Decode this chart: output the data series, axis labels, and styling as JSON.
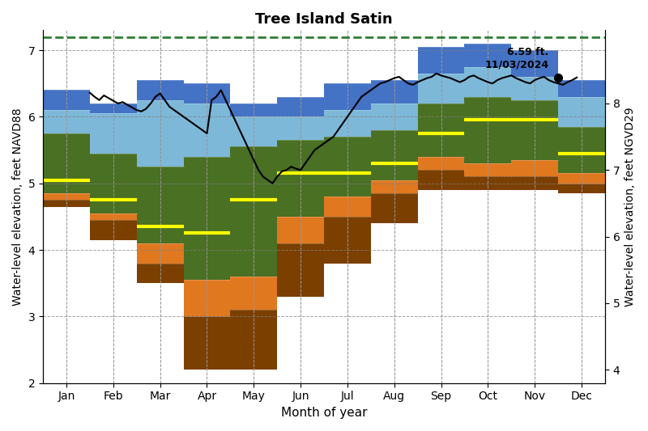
{
  "title": "Tree Island Satin",
  "xlabel": "Month of year",
  "ylabel_left": "Water-level elevation, feet NAVD88",
  "ylabel_right": "Water-level elevation, feet NGVD29",
  "months": [
    "Jan",
    "Feb",
    "Mar",
    "Apr",
    "May",
    "Jun",
    "Jul",
    "Aug",
    "Sep",
    "Oct",
    "Nov",
    "Dec"
  ],
  "ylim_left": [
    2,
    7.3
  ],
  "ylim_right": [
    3.8,
    9.1
  ],
  "green_dashed_line": 7.2,
  "percentile_data": {
    "p0": [
      4.65,
      4.15,
      3.5,
      2.2,
      2.2,
      3.3,
      3.8,
      4.4,
      4.9,
      4.9,
      4.9,
      4.85
    ],
    "p10": [
      4.75,
      4.45,
      3.8,
      3.0,
      3.1,
      4.1,
      4.5,
      4.85,
      5.2,
      5.1,
      5.1,
      5.0
    ],
    "p25": [
      4.85,
      4.55,
      4.1,
      3.55,
      3.6,
      4.5,
      4.8,
      5.05,
      5.4,
      5.3,
      5.35,
      5.15
    ],
    "p50": [
      5.05,
      4.75,
      4.35,
      4.25,
      4.75,
      5.15,
      5.15,
      5.3,
      5.75,
      5.95,
      5.95,
      5.45
    ],
    "p75": [
      5.75,
      5.45,
      5.25,
      5.4,
      5.55,
      5.65,
      5.7,
      5.8,
      6.2,
      6.3,
      6.25,
      5.85
    ],
    "p90": [
      6.1,
      6.05,
      6.25,
      6.2,
      6.0,
      6.0,
      6.1,
      6.2,
      6.65,
      6.75,
      6.6,
      6.3
    ],
    "p100": [
      6.4,
      6.2,
      6.55,
      6.5,
      6.2,
      6.3,
      6.5,
      6.55,
      7.05,
      7.1,
      7.0,
      6.55
    ]
  },
  "band_colors": {
    "p0_p10": "#7B3F00",
    "p10_p25": "#E07820",
    "p25_p75_bottom": "#4A7023",
    "p75_p90": "#7DB8D8",
    "p90_p100": "#4472C4"
  },
  "median_color": "#FFFF00",
  "median_linewidth": 3,
  "current_value": 6.59,
  "current_date": "11/03/2024",
  "current_month_idx": 10,
  "annotation_text": "6.59 ft.\n11/03/2024",
  "daily_line": {
    "months_x": [
      0.5,
      0.6,
      0.7,
      0.8,
      0.9,
      1.0,
      1.1,
      1.2,
      1.3,
      1.4,
      1.5,
      1.6,
      1.7,
      1.8,
      1.9,
      2.0,
      2.1,
      2.2,
      2.3,
      2.4,
      2.5,
      2.6,
      2.7,
      2.8,
      2.9,
      3.0,
      3.1,
      3.2,
      3.3,
      3.4,
      3.5,
      3.6,
      3.7,
      3.8,
      3.9,
      4.0,
      4.1,
      4.2,
      4.3,
      4.4,
      4.5,
      4.6,
      4.7,
      4.8,
      4.9,
      5.0,
      5.1,
      5.2,
      5.3,
      5.4,
      5.5,
      5.6,
      5.7,
      5.8,
      5.9,
      6.0,
      6.1,
      6.2,
      6.3,
      6.4,
      6.5,
      6.6,
      6.7,
      6.8,
      6.9,
      7.0,
      7.1,
      7.2,
      7.3,
      7.4,
      7.5,
      7.6,
      7.7,
      7.8,
      7.9,
      8.0,
      8.1,
      8.2,
      8.3,
      8.4,
      8.5,
      8.6,
      8.7,
      8.8,
      8.9,
      9.0,
      9.1,
      9.2,
      9.3,
      9.4,
      9.5,
      9.6,
      9.7,
      9.8,
      9.9,
      10.0,
      10.1,
      10.2,
      10.3,
      10.4,
      10.5,
      10.6,
      10.7,
      10.8,
      10.9
    ],
    "values": [
      6.36,
      6.3,
      6.25,
      6.32,
      6.28,
      6.24,
      6.2,
      6.22,
      6.18,
      6.14,
      6.1,
      6.08,
      6.12,
      6.2,
      6.3,
      6.35,
      6.25,
      6.15,
      6.1,
      6.05,
      6.0,
      5.95,
      5.9,
      5.85,
      5.8,
      5.75,
      6.25,
      6.3,
      6.4,
      6.25,
      6.1,
      5.95,
      5.8,
      5.65,
      5.5,
      5.35,
      5.2,
      5.1,
      5.05,
      5.0,
      5.1,
      5.18,
      5.2,
      5.25,
      5.22,
      5.2,
      5.3,
      5.4,
      5.5,
      5.55,
      5.6,
      5.65,
      5.7,
      5.8,
      5.9,
      6.0,
      6.1,
      6.2,
      6.3,
      6.35,
      6.4,
      6.45,
      6.5,
      6.52,
      6.55,
      6.58,
      6.6,
      6.55,
      6.5,
      6.48,
      6.52,
      6.55,
      6.58,
      6.6,
      6.65,
      6.62,
      6.6,
      6.58,
      6.55,
      6.52,
      6.55,
      6.6,
      6.62,
      6.58,
      6.55,
      6.52,
      6.5,
      6.55,
      6.58,
      6.6,
      6.62,
      6.58,
      6.55,
      6.52,
      6.5,
      6.55,
      6.58,
      6.6,
      6.55,
      6.52,
      6.5,
      6.48,
      6.52,
      6.55,
      6.59
    ]
  },
  "background_color": "#FFFFFF",
  "grid_major_color": "#808080",
  "grid_minor_color": "#C0C0C0"
}
